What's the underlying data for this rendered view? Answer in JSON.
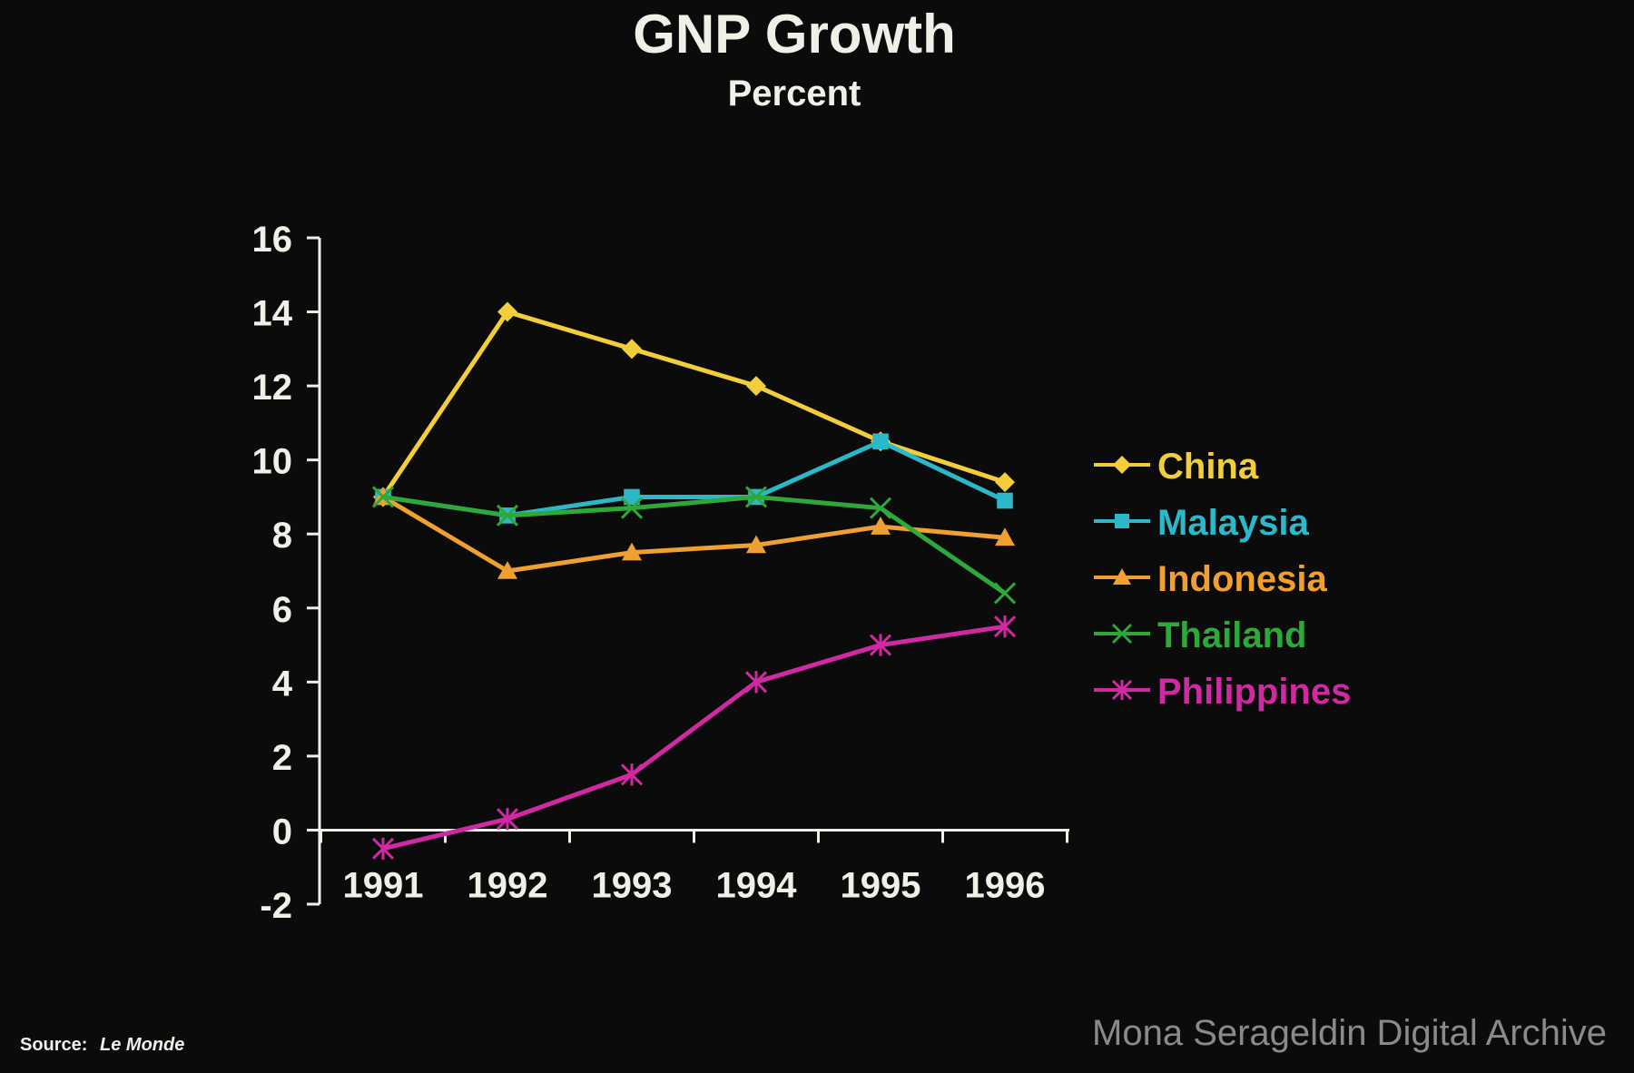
{
  "chart_data": {
    "type": "line",
    "title": "GNP Growth",
    "subtitle": "Percent",
    "xlabel": "",
    "ylabel": "",
    "categories": [
      "1991",
      "1992",
      "1993",
      "1994",
      "1995",
      "1996"
    ],
    "ylim": [
      -2,
      16
    ],
    "yticks": [
      "16",
      "14",
      "12",
      "10",
      "8",
      "6",
      "4",
      "2",
      "0",
      "-2"
    ],
    "grid": false,
    "legend_position": "right",
    "series": [
      {
        "name": "China",
        "color": "#f2cf3a",
        "marker": "diamond",
        "values": [
          9.0,
          14.0,
          13.0,
          12.0,
          10.5,
          9.4
        ]
      },
      {
        "name": "Malaysia",
        "color": "#2cb8c8",
        "marker": "square",
        "values": [
          9.0,
          8.5,
          9.0,
          9.0,
          10.5,
          8.9
        ]
      },
      {
        "name": "Indonesia",
        "color": "#f0a030",
        "marker": "triangle",
        "values": [
          9.0,
          7.0,
          7.5,
          7.7,
          8.2,
          7.9
        ]
      },
      {
        "name": "Thailand",
        "color": "#2fa83a",
        "marker": "x",
        "values": [
          9.0,
          8.5,
          8.7,
          9.0,
          8.7,
          6.4
        ]
      },
      {
        "name": "Philippines",
        "color": "#d02aa2",
        "marker": "star",
        "values": [
          -0.5,
          0.3,
          1.5,
          4.0,
          5.0,
          5.5
        ]
      }
    ]
  },
  "footer": {
    "source_label": "Source:",
    "source_name": "Le Monde",
    "watermark": "Mona Serageldin Digital Archive"
  }
}
